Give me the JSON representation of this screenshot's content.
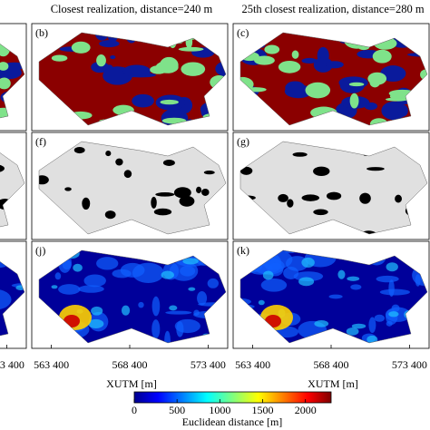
{
  "panel_titles": [
    "Closest realization, distance=240 m",
    "25th closest realization, distance=280 m"
  ],
  "panel_labels": [
    "(b)",
    "(c)",
    "(f)",
    "(g)",
    "(j)",
    "(k)"
  ],
  "x_axis": {
    "label": "XUTM [m]",
    "xlim": [
      562150,
      574650
    ],
    "ticks": [
      {
        "value": 563400,
        "label": "563 400"
      },
      {
        "value": 568400,
        "label": "568 400"
      },
      {
        "value": 573400,
        "label": "573 400"
      }
    ]
  },
  "colorbar": {
    "label": "Euclidean distance [m]",
    "lim": [
      0,
      2300
    ],
    "ticks": [
      0,
      500,
      1000,
      1500,
      2000
    ]
  }
}
